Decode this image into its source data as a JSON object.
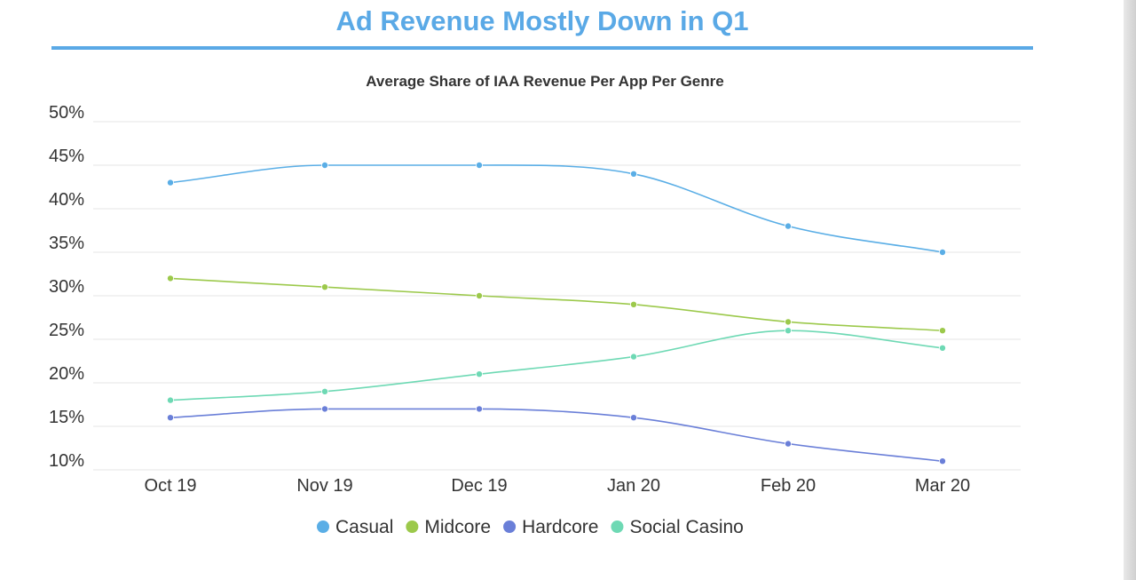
{
  "page": {
    "title": "Ad Revenue Mostly Down in Q1",
    "accent_color": "#5aa9e6"
  },
  "chart_data": {
    "type": "line",
    "title": "Average Share of IAA Revenue Per App Per Genre",
    "xlabel": "",
    "ylabel": "",
    "categories": [
      "Oct 19",
      "Nov 19",
      "Dec 19",
      "Jan 20",
      "Feb 20",
      "Mar 20"
    ],
    "ylim": [
      10,
      50
    ],
    "yticks": [
      "10%",
      "15%",
      "20%",
      "25%",
      "30%",
      "35%",
      "40%",
      "45%",
      "50%"
    ],
    "grid": true,
    "smooth": true,
    "legend_position": "bottom",
    "series": [
      {
        "name": "Casual",
        "color": "#5aaee6",
        "values": [
          43,
          45,
          45,
          44,
          38,
          35
        ]
      },
      {
        "name": "Midcore",
        "color": "#9cc94b",
        "values": [
          32,
          31,
          30,
          29,
          27,
          26
        ]
      },
      {
        "name": "Hardcore",
        "color": "#6a7fd8",
        "values": [
          16,
          17,
          17,
          16,
          13,
          11
        ]
      },
      {
        "name": "Social Casino",
        "color": "#6ed9b4",
        "values": [
          18,
          19,
          21,
          23,
          26,
          24
        ]
      }
    ]
  }
}
